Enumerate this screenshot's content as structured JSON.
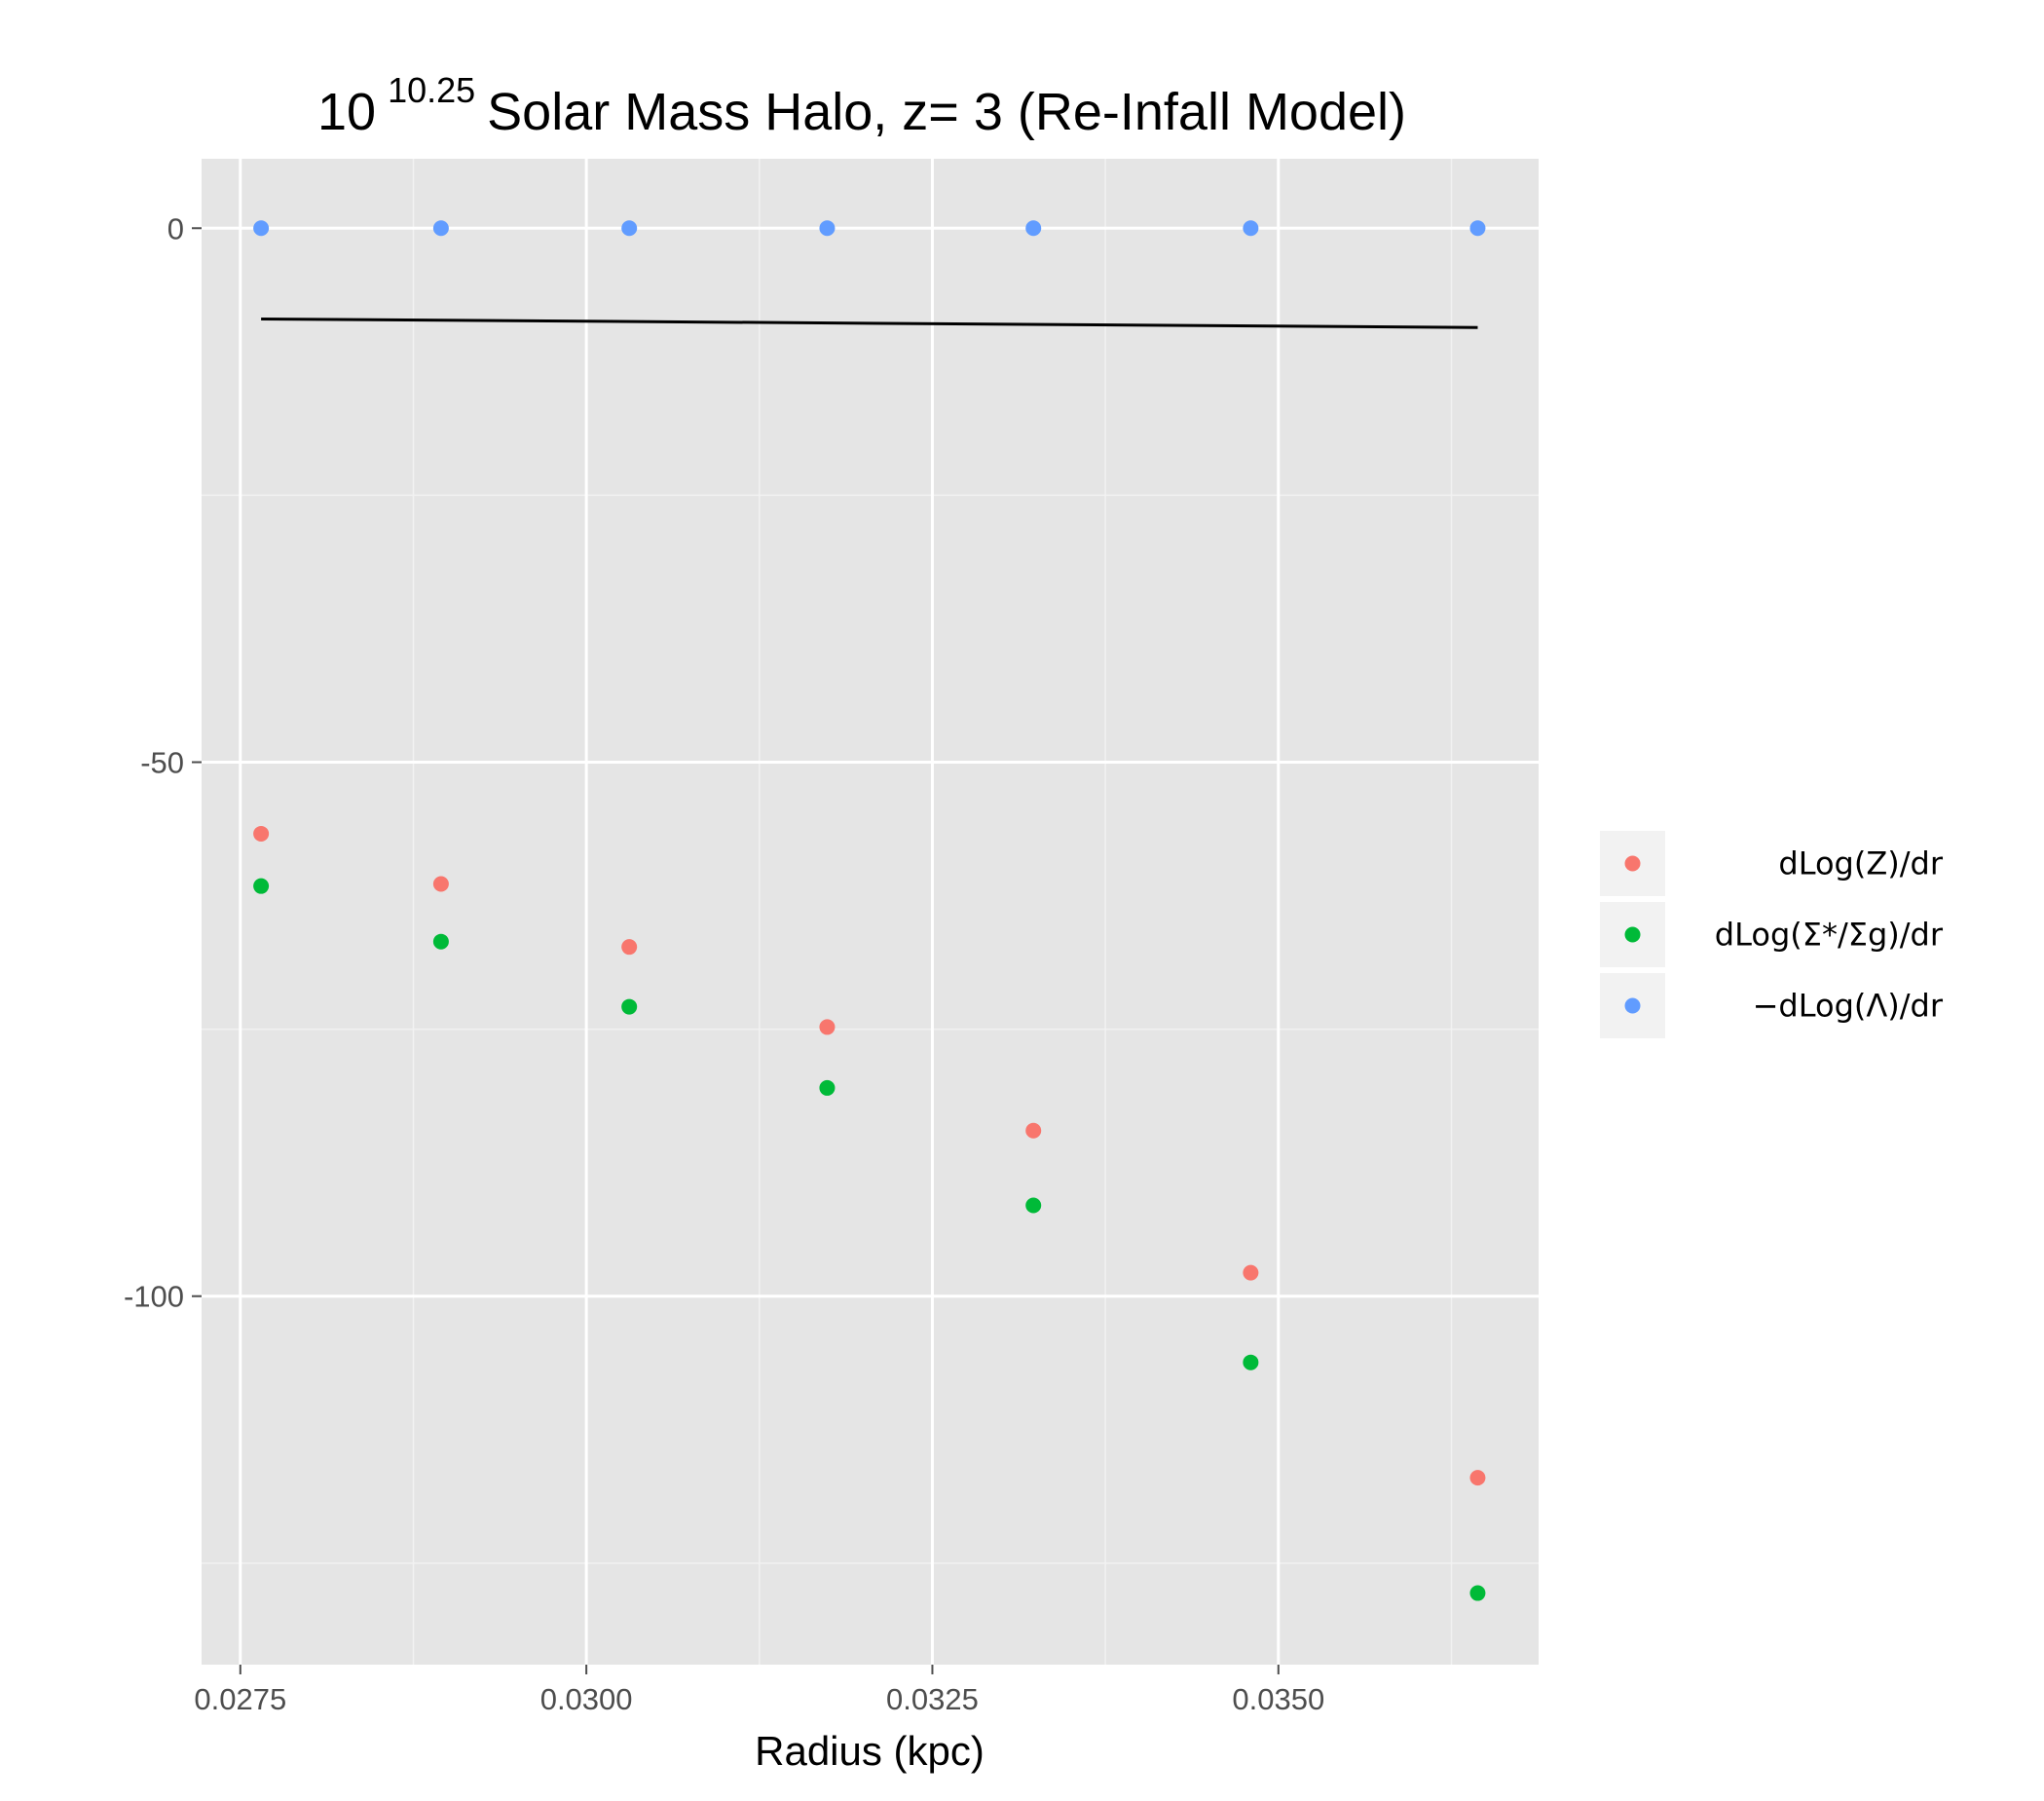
{
  "chart_data": {
    "type": "scatter",
    "title": {
      "base": "10",
      "exponent": "10.25",
      "rest": "Solar Mass Halo, z= 3 (Re-Infall Model)"
    },
    "xlabel": "Radius (kpc)",
    "ylabel": "",
    "xlim": [
      0.02722,
      0.03688
    ],
    "ylim": [
      -134.5,
      6.5
    ],
    "x_ticks": [
      0.0275,
      0.03,
      0.0325,
      0.035
    ],
    "x_tick_labels": [
      "0.0275",
      "0.0300",
      "0.0325",
      "0.0350"
    ],
    "y_ticks": [
      0,
      -50,
      -100
    ],
    "y_tick_labels": [
      "0",
      "-50",
      "-100"
    ],
    "grid": true,
    "legend_position": "right",
    "x": [
      0.02765,
      0.02895,
      0.03031,
      0.03174,
      0.03323,
      0.0348,
      0.03644
    ],
    "series": [
      {
        "name": "dLog(Z)/dr",
        "color": "#F8766D",
        "values": [
          -56.7,
          -61.4,
          -67.3,
          -74.8,
          -84.5,
          -97.8,
          -117.0
        ]
      },
      {
        "name": "dLog(Σ*/Σg)/dr",
        "color": "#00BA38",
        "values": [
          -61.6,
          -66.8,
          -72.9,
          -80.5,
          -91.5,
          -106.2,
          -127.8
        ]
      },
      {
        "name": "−dLog(Λ)/dr",
        "color": "#619CFF",
        "values": [
          0,
          0,
          0,
          0,
          0,
          0,
          0
        ]
      }
    ],
    "line": {
      "color": "#000000",
      "x": [
        0.02765,
        0.03644
      ],
      "values": [
        -8.5,
        -9.3
      ]
    }
  }
}
